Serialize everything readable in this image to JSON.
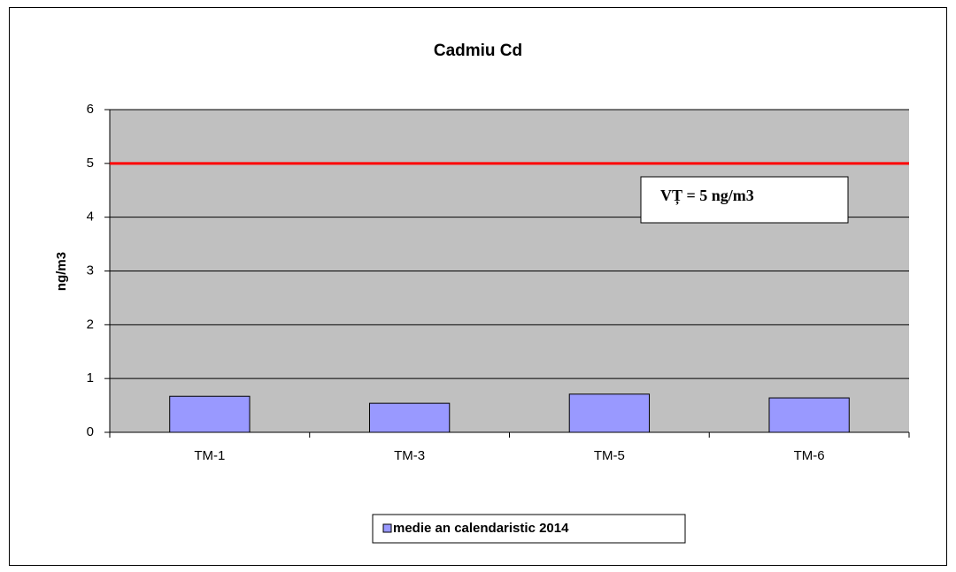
{
  "chart_data": {
    "type": "bar",
    "title": "Cadmiu Cd",
    "y_label": "ng/m3",
    "categories": [
      "TM-1",
      "TM-3",
      "TM-5",
      "TM-6"
    ],
    "series": [
      {
        "name": "medie an calendaristic 2014",
        "color": "#9999ff",
        "values": [
          0.67,
          0.54,
          0.71,
          0.64
        ]
      }
    ],
    "ylim": [
      0,
      6
    ],
    "yticks": [
      0,
      1,
      2,
      3,
      4,
      5,
      6
    ],
    "grid": true,
    "plot_background": "#c0c0c0",
    "reference_line": {
      "value": 5,
      "color": "#ff0000"
    },
    "annotation": "VȚ = 5 ng/m3",
    "legend": "bottom"
  }
}
